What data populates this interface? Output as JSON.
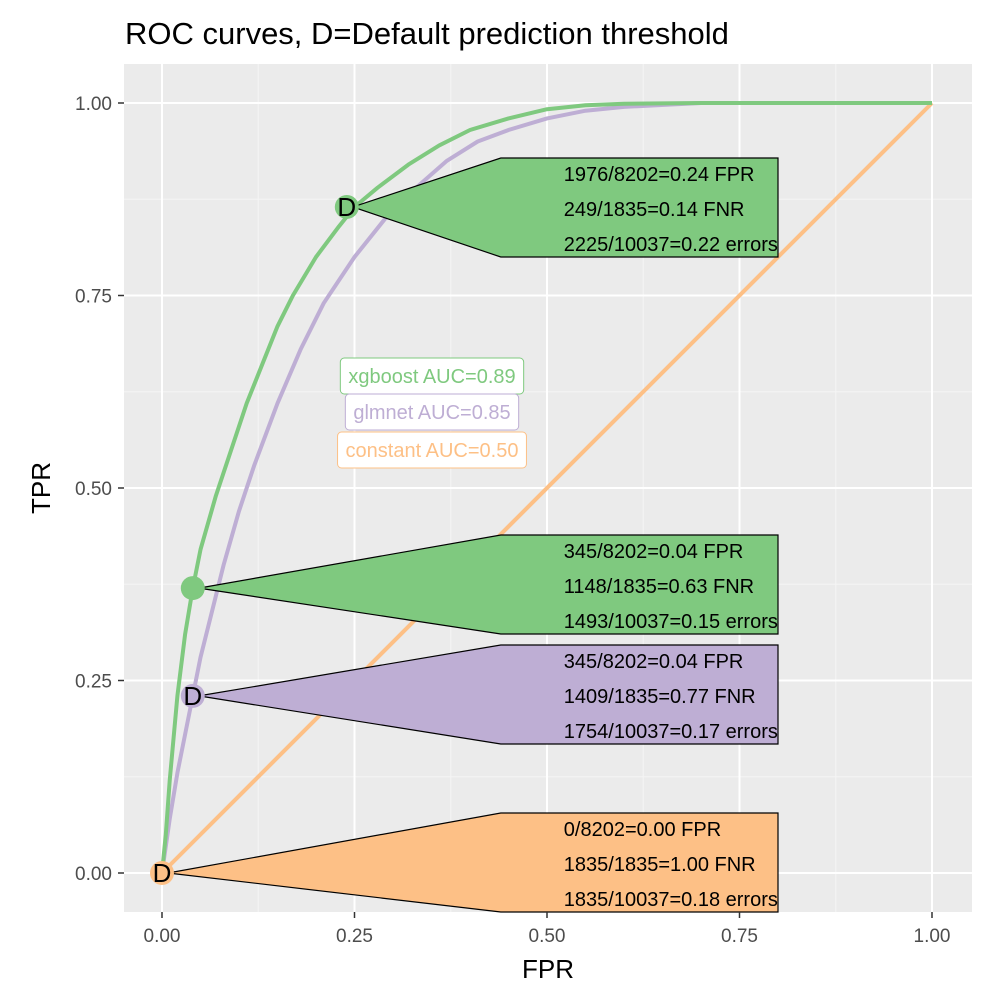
{
  "chart_data": {
    "type": "line",
    "title": "ROC curves, D=Default prediction threshold",
    "xlabel": "FPR",
    "ylabel": "TPR",
    "xlim": [
      0,
      1
    ],
    "ylim": [
      0,
      1
    ],
    "xticks": [
      "0.00",
      "0.25",
      "0.50",
      "0.75",
      "1.00"
    ],
    "yticks": [
      "0.00",
      "0.25",
      "0.50",
      "0.75",
      "1.00"
    ],
    "grid": true,
    "series": [
      {
        "name": "xgboost AUC=0.89",
        "color": "#7fc97f",
        "x": [
          0,
          0.005,
          0.01,
          0.02,
          0.03,
          0.04,
          0.05,
          0.07,
          0.09,
          0.11,
          0.13,
          0.15,
          0.17,
          0.2,
          0.23,
          0.25,
          0.28,
          0.32,
          0.36,
          0.4,
          0.45,
          0.5,
          0.55,
          0.6,
          0.7,
          0.8,
          1.0
        ],
        "y": [
          0,
          0.05,
          0.12,
          0.23,
          0.31,
          0.37,
          0.42,
          0.49,
          0.55,
          0.61,
          0.66,
          0.71,
          0.75,
          0.8,
          0.84,
          0.865,
          0.89,
          0.92,
          0.945,
          0.965,
          0.98,
          0.992,
          0.997,
          0.999,
          1.0,
          1.0,
          1.0
        ]
      },
      {
        "name": "glmnet AUC=0.85",
        "color": "#beaed4",
        "x": [
          0,
          0.01,
          0.02,
          0.03,
          0.04,
          0.05,
          0.06,
          0.08,
          0.1,
          0.12,
          0.15,
          0.18,
          0.21,
          0.25,
          0.29,
          0.33,
          0.37,
          0.41,
          0.45,
          0.5,
          0.55,
          0.6,
          0.7,
          0.8,
          1.0
        ],
        "y": [
          0,
          0.07,
          0.13,
          0.18,
          0.23,
          0.28,
          0.32,
          0.4,
          0.47,
          0.53,
          0.61,
          0.68,
          0.74,
          0.8,
          0.85,
          0.89,
          0.925,
          0.95,
          0.965,
          0.98,
          0.99,
          0.995,
          1.0,
          1.0,
          1.0
        ]
      },
      {
        "name": "constant AUC=0.50",
        "color": "#fdc086",
        "x": [
          0,
          1
        ],
        "y": [
          0,
          1
        ]
      }
    ],
    "legend": [
      {
        "label": "xgboost AUC=0.89",
        "color": "#7fc97f"
      },
      {
        "label": "glmnet AUC=0.85",
        "color": "#beaed4"
      },
      {
        "label": "constant AUC=0.50",
        "color": "#fdc086"
      }
    ],
    "thresholds": [
      {
        "series": "xgboost AUC=0.89",
        "color": "#7fc97f",
        "marker": "D",
        "fpr": 0.24,
        "tpr": 0.865,
        "lines": [
          "1976/8202=0.24 FPR",
          "249/1835=0.14 FNR",
          "2225/10037=0.22 errors"
        ]
      },
      {
        "series": "xgboost AUC=0.89",
        "color": "#7fc97f",
        "marker": "",
        "fpr": 0.04,
        "tpr": 0.37,
        "lines": [
          "345/8202=0.04 FPR",
          "1148/1835=0.63 FNR",
          "1493/10037=0.15 errors"
        ]
      },
      {
        "series": "glmnet AUC=0.85",
        "color": "#beaed4",
        "marker": "D",
        "fpr": 0.04,
        "tpr": 0.23,
        "lines": [
          "345/8202=0.04 FPR",
          "1409/1835=0.77 FNR",
          "1754/10037=0.17 errors"
        ]
      },
      {
        "series": "constant AUC=0.50",
        "color": "#fdc086",
        "marker": "D",
        "fpr": 0.0,
        "tpr": 0.0,
        "lines": [
          "0/8202=0.00 FPR",
          "1835/1835=1.00 FNR",
          "1835/10037=0.18 errors"
        ]
      }
    ]
  }
}
